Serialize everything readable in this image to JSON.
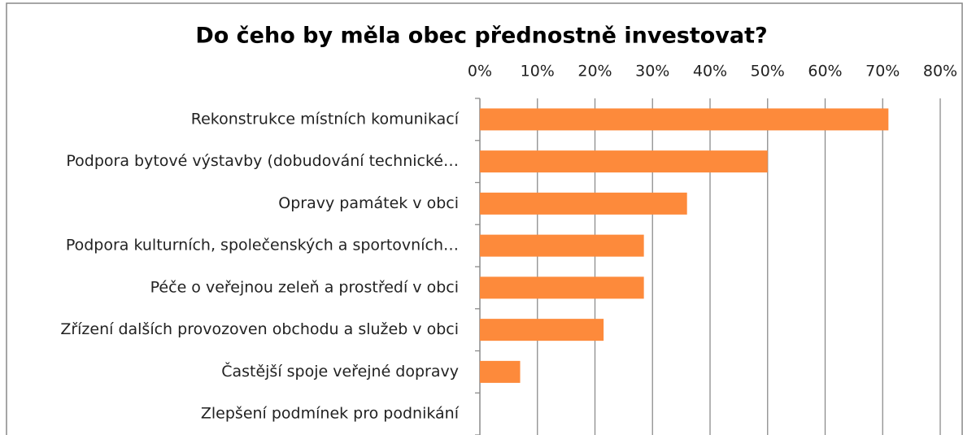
{
  "chart_data": {
    "type": "bar",
    "orientation": "horizontal",
    "title": "Do čeho by měla obec přednostně investovat?",
    "categories": [
      "Rekonstrukce místních komunikací",
      "Podpora bytové výstavby (dobudování technické…",
      "Opravy památek v obci",
      "Podpora kulturních, společenských a sportovních…",
      "Péče o veřejnou zeleň a prostředí v obci",
      "Zřízení dalších provozoven obchodu a služeb v obci",
      "Častější spoje veřejné dopravy",
      "Zlepšení podmínek pro podnikání"
    ],
    "values": [
      71,
      50,
      36,
      28.5,
      28.5,
      21.5,
      7,
      0
    ],
    "color": "#fd8a3b",
    "xlim": [
      0,
      80
    ],
    "xticks": [
      {
        "value": 0,
        "label": "0%"
      },
      {
        "value": 10,
        "label": "10%"
      },
      {
        "value": 20,
        "label": "20%"
      },
      {
        "value": 30,
        "label": "30%"
      },
      {
        "value": 40,
        "label": "40%"
      },
      {
        "value": 50,
        "label": "50%"
      },
      {
        "value": 60,
        "label": "60%"
      },
      {
        "value": 70,
        "label": "70%"
      },
      {
        "value": 80,
        "label": "80%"
      }
    ],
    "grid": true
  }
}
